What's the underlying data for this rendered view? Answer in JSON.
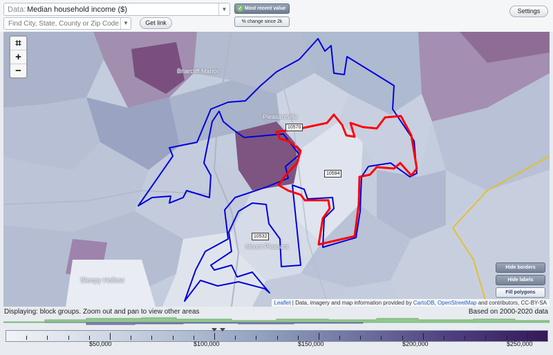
{
  "data_select": {
    "prefix": "Data:",
    "value": "Median household income ($)"
  },
  "search": {
    "placeholder": "Find City, State, County or Zip Code"
  },
  "buttons": {
    "get_link": "Get link",
    "settings": "Settings",
    "most_recent": "Most recent value",
    "pct_change": "% change since 2k"
  },
  "map": {
    "places": [
      "Briarcliff Manor",
      "Pleasantville",
      "Mount Pleasant",
      "Sleepy Hollow"
    ],
    "zips": [
      "10570",
      "10594",
      "10532"
    ],
    "controls": {
      "zoom_in": "+",
      "zoom_out": "−"
    },
    "buttons": {
      "hide_borders": "Hide borders",
      "hide_labels": "Hide labels",
      "fill_polygons": "Fill polygons"
    },
    "attribution": {
      "leaflet": "Leaflet",
      "sep": " | Data, imagery and map information provided by ",
      "cartodb": "CartoDB",
      "comma": ", ",
      "osm": "OpenStreetMap",
      "rest": " and contributors, CC-BY-SA"
    }
  },
  "status": {
    "displaying": "Displaying: block groups. Zoom out and pan to view other areas",
    "based_on": "Based on 2000-2020 data"
  },
  "legend": {
    "labels": [
      "$50,000",
      "$100,000",
      "$150,000",
      "$200,000",
      "$250,000"
    ],
    "label_values": [
      50000,
      100000,
      150000,
      200000,
      250000
    ],
    "range": [
      0,
      260000
    ]
  },
  "colors": {
    "accent_red": "#ff0000",
    "border_blue": "#0000dd",
    "county_line": "#e0c030"
  }
}
